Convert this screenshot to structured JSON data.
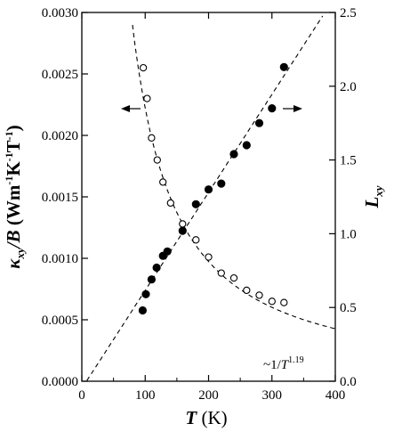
{
  "chart_data": {
    "type": "scatter",
    "x_axis": {
      "range": [
        0,
        400
      ],
      "ticks": [
        0,
        100,
        200,
        300,
        400
      ],
      "label_symbol": "T",
      "label_unit": " (K)"
    },
    "y_left_axis": {
      "range": [
        0,
        0.003
      ],
      "ticks": [
        "0.0000",
        "0.0005",
        "0.0010",
        "0.0015",
        "0.0020",
        "0.0025",
        "0.0030"
      ],
      "label": {
        "kappa": "κ",
        "kappa_sub": "xy",
        "slash_b": "/B",
        "paren_open": " (Wm",
        "exp1": "-1",
        "k_unit": "K",
        "exp2": "-1",
        "t_unit": "T",
        "exp3": "-1",
        "paren_close": ")"
      }
    },
    "y_right_axis": {
      "range": [
        0,
        2.5
      ],
      "ticks": [
        "0.0",
        "0.5",
        "1.0",
        "1.5",
        "2.0",
        "2.5"
      ],
      "label_symbol": "L",
      "label_sub": "xy"
    },
    "series": [
      {
        "axis": "left",
        "marker": "open-circle",
        "x": [
          97,
          103,
          110,
          119,
          128,
          140,
          159,
          180,
          200,
          220,
          240,
          260,
          280,
          300,
          319
        ],
        "y": [
          0.00255,
          0.0023,
          0.00198,
          0.0018,
          0.00162,
          0.00145,
          0.00128,
          0.00115,
          0.00101,
          0.00088,
          0.00084,
          0.00074,
          0.0007,
          0.00065,
          0.00064
        ]
      },
      {
        "axis": "right",
        "marker": "filled-circle",
        "x": [
          96,
          101,
          110,
          118,
          128,
          135,
          159,
          180,
          200,
          220,
          240,
          260,
          280,
          300,
          319
        ],
        "y": [
          0.48,
          0.59,
          0.69,
          0.77,
          0.85,
          0.88,
          1.02,
          1.2,
          1.3,
          1.34,
          1.54,
          1.6,
          1.75,
          1.85,
          2.13
        ]
      }
    ],
    "fit_curves": [
      {
        "axis": "left",
        "style": "dashed",
        "form": "power",
        "coef": 1e-16,
        "exponent": -1.19
      },
      {
        "axis": "right",
        "style": "dashed",
        "form": "linear",
        "slope": 0.006645,
        "intercept": -0.0488
      }
    ],
    "annotations": {
      "fit_label_prefix": "~1/",
      "fit_label_symbol": "T",
      "fit_label_exponent": "1.19"
    },
    "arrows": [
      {
        "points_to": "left-axis"
      },
      {
        "points_to": "right-axis"
      }
    ]
  }
}
